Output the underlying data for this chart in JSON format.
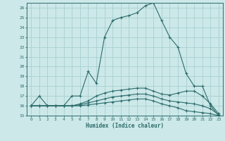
{
  "xlabel": "Humidex (Indice chaleur)",
  "hours": [
    0,
    1,
    2,
    3,
    4,
    5,
    6,
    7,
    8,
    9,
    10,
    11,
    12,
    13,
    14,
    15,
    16,
    17,
    18,
    19,
    20,
    21,
    22,
    23
  ],
  "line1": [
    16,
    17,
    16,
    16,
    16,
    17,
    17,
    19.5,
    18.3,
    23,
    24.7,
    25,
    25.2,
    25.5,
    26.2,
    26.5,
    24.7,
    23,
    22,
    19.3,
    18,
    18,
    16,
    15
  ],
  "line2": [
    16,
    16,
    16,
    16,
    16,
    16,
    16.2,
    16.5,
    17,
    17.3,
    17.5,
    17.6,
    17.7,
    17.8,
    17.8,
    17.5,
    17.2,
    17.1,
    17.3,
    17.5,
    17.5,
    17,
    16.2,
    15.2
  ],
  "line3": [
    16,
    16,
    16,
    16,
    16,
    16,
    16.1,
    16.3,
    16.5,
    16.7,
    16.9,
    17,
    17.1,
    17.2,
    17.2,
    17.0,
    16.7,
    16.5,
    16.4,
    16.3,
    16.2,
    16.0,
    15.7,
    15.1
  ],
  "line4": [
    16,
    16,
    16,
    16,
    16,
    16,
    16,
    16.1,
    16.2,
    16.3,
    16.4,
    16.5,
    16.6,
    16.7,
    16.7,
    16.5,
    16.2,
    16.0,
    15.8,
    15.5,
    15.4,
    15.3,
    15.2,
    15.0
  ],
  "line_color": "#2d6b6b",
  "bg_color": "#cce8e8",
  "grid_color": "#a8d0d0",
  "ylim": [
    15,
    26.5
  ],
  "xlim": [
    -0.5,
    23.5
  ],
  "yticks": [
    15,
    16,
    17,
    18,
    19,
    20,
    21,
    22,
    23,
    24,
    25,
    26
  ],
  "ytick_labels": [
    "15",
    "16",
    "17",
    "18",
    "19",
    "20",
    "21",
    "22",
    "23",
    "24",
    "25",
    "26"
  ]
}
